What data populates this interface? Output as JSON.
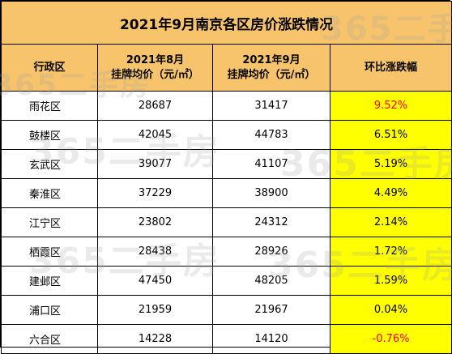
{
  "title": "2021年9月南京各区房价涨跌情况",
  "headers": {
    "district": "行政区",
    "aug_line1": "2021年8月",
    "aug_line2": "挂牌均价（元/㎡）",
    "sep_line1": "2021年9月",
    "sep_line2": "挂牌均价（元/㎡）",
    "change": "环比涨跌幅"
  },
  "rows": [
    {
      "district": "雨花区",
      "aug": "28687",
      "sep": "31417",
      "change": "9.52%",
      "change_color": "#FF0000"
    },
    {
      "district": "鼓楼区",
      "aug": "42045",
      "sep": "44783",
      "change": "6.51%",
      "change_color": "#000000"
    },
    {
      "district": "玄武区",
      "aug": "39077",
      "sep": "41107",
      "change": "5.19%",
      "change_color": "#000000"
    },
    {
      "district": "秦淮区",
      "aug": "37229",
      "sep": "38900",
      "change": "4.49%",
      "change_color": "#000000"
    },
    {
      "district": "江宁区",
      "aug": "23802",
      "sep": "24312",
      "change": "2.14%",
      "change_color": "#000000"
    },
    {
      "district": "栖霞区",
      "aug": "28438",
      "sep": "28926",
      "change": "1.72%",
      "change_color": "#000000"
    },
    {
      "district": "建邺区",
      "aug": "47450",
      "sep": "48205",
      "change": "1.59%",
      "change_color": "#000000"
    },
    {
      "district": "浦口区",
      "aug": "21959",
      "sep": "21967",
      "change": "0.04%",
      "change_color": "#000000"
    },
    {
      "district": "六合区",
      "aug": "14228",
      "sep": "14120",
      "change": "-0.76%",
      "change_color": "#FF0000"
    }
  ],
  "watermark_text": "365二手房",
  "colors": {
    "header_bg": "#F7C46C",
    "highlight": "#FFFF00"
  }
}
